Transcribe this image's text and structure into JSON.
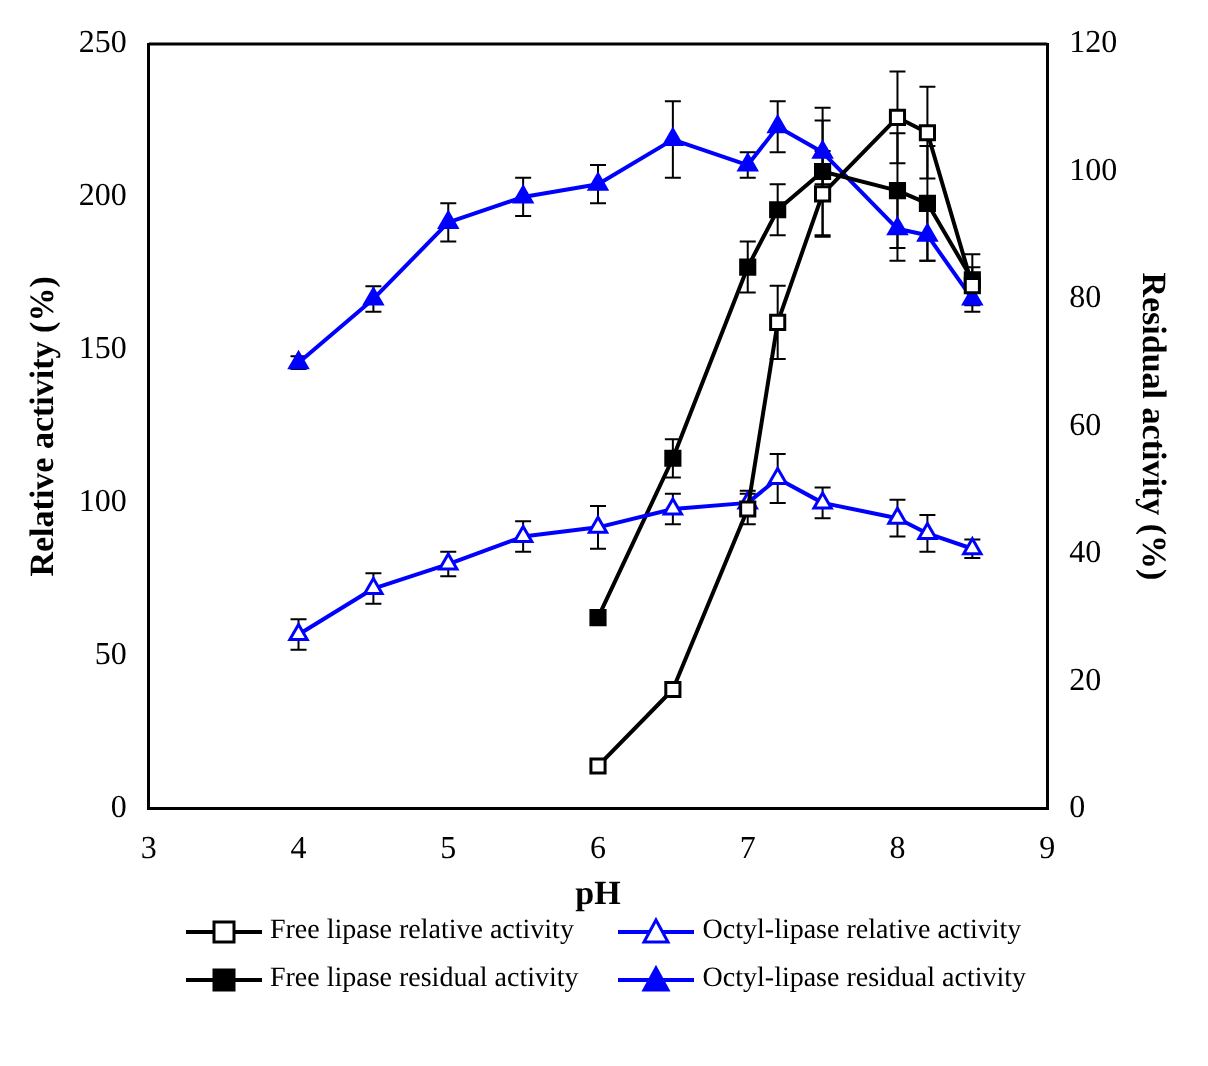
{
  "chart_data": {
    "type": "line",
    "xlabel": "pH",
    "ylabel": "Relative activity (%)",
    "y2label": "Residual activity (%)",
    "xlim": [
      3,
      9
    ],
    "xticks": [
      3,
      4,
      5,
      6,
      7,
      8,
      9
    ],
    "ylim": [
      0,
      250
    ],
    "yticks": [
      0,
      50,
      100,
      150,
      200,
      250
    ],
    "y2lim": [
      0,
      120
    ],
    "y2ticks": [
      0,
      20,
      40,
      60,
      80,
      100,
      120
    ],
    "legend": "bottom",
    "grid": false,
    "series": [
      {
        "name": "Free lipase relative activity",
        "color": "#000000",
        "marker": "square",
        "x": [
          6,
          6.5,
          7,
          7.2,
          7.5,
          8,
          8.2,
          8.5
        ],
        "values": [
          14,
          39,
          98,
          159,
          201,
          226,
          221,
          171
        ],
        "errors": [
          null,
          null,
          5,
          12,
          14,
          15,
          15,
          6
        ]
      },
      {
        "name": "Octyl-lipase relative activity",
        "color": "#0000ff",
        "marker": "triangle",
        "x": [
          4,
          4.5,
          5,
          5.5,
          6,
          6.5,
          7,
          7.2,
          7.5,
          8,
          8.2,
          8.5
        ],
        "values": [
          57,
          72,
          80,
          89,
          92,
          98,
          100,
          108,
          100,
          95,
          90,
          85
        ],
        "errors": [
          5,
          5,
          4,
          5,
          7,
          5,
          4,
          8,
          5,
          6,
          6,
          3
        ]
      },
      {
        "name": "Free lipase residual activity",
        "color": "#000000",
        "marker": "square",
        "x": [
          6,
          6.5,
          7,
          7.2,
          7.5,
          8,
          8.2,
          8.5
        ],
        "values": [
          30,
          55,
          85,
          94,
          100,
          97,
          95,
          83
        ],
        "errors": [
          null,
          3,
          4,
          4,
          10,
          9,
          9,
          4
        ],
        "axis": "y2"
      },
      {
        "name": "Octyl-lipase residual activity",
        "color": "#0000ff",
        "marker": "triangle",
        "x": [
          4,
          4.5,
          5,
          5.5,
          6,
          6.5,
          7,
          7.2,
          7.5,
          8,
          8.2,
          8.5
        ],
        "values": [
          70,
          80,
          92,
          96,
          98,
          105,
          101,
          107,
          103,
          91,
          90,
          80
        ],
        "errors": [
          1,
          2,
          3,
          3,
          3,
          6,
          2,
          4,
          5,
          5,
          4,
          2
        ],
        "axis": "y2"
      }
    ]
  }
}
